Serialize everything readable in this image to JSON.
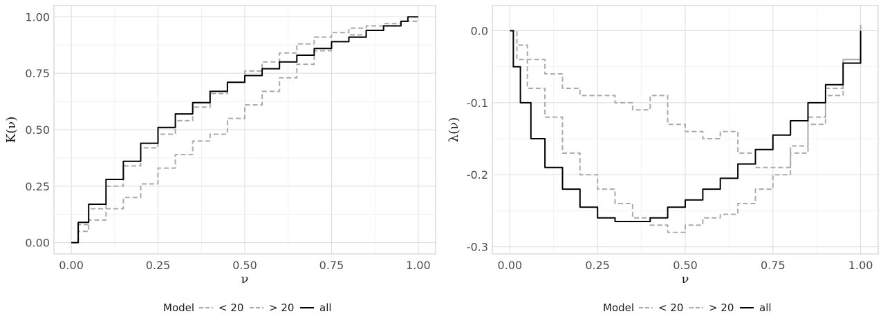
{
  "chart_data": [
    {
      "type": "line",
      "xlabel": "ν",
      "ylabel": "K(ν)",
      "xlim": [
        -0.05,
        1.05
      ],
      "ylim": [
        -0.05,
        1.05
      ],
      "xticks": [
        0.0,
        0.25,
        0.5,
        0.75,
        1.0
      ],
      "xtick_labels": [
        "0.00",
        "0.25",
        "0.50",
        "0.75",
        "1.00"
      ],
      "yticks": [
        0.0,
        0.25,
        0.5,
        0.75,
        1.0
      ],
      "ytick_labels": [
        "0.00",
        "0.25",
        "0.50",
        "0.75",
        "1.00"
      ],
      "grid": true,
      "series": [
        {
          "name": "< 20",
          "color": "#aaaaaa",
          "dash": "dashed",
          "x": [
            0.0,
            0.02,
            0.05,
            0.1,
            0.15,
            0.2,
            0.25,
            0.3,
            0.35,
            0.4,
            0.45,
            0.5,
            0.55,
            0.6,
            0.65,
            0.7,
            0.75,
            0.8,
            0.85,
            0.9,
            0.95,
            1.0
          ],
          "y": [
            0.0,
            0.08,
            0.15,
            0.25,
            0.34,
            0.42,
            0.48,
            0.54,
            0.6,
            0.66,
            0.71,
            0.76,
            0.8,
            0.84,
            0.88,
            0.91,
            0.93,
            0.95,
            0.96,
            0.97,
            0.98,
            0.98
          ]
        },
        {
          "name": "> 20",
          "color": "#aaaaaa",
          "dash": "dashed",
          "x": [
            0.0,
            0.02,
            0.05,
            0.1,
            0.15,
            0.2,
            0.25,
            0.3,
            0.35,
            0.4,
            0.45,
            0.5,
            0.55,
            0.6,
            0.65,
            0.7,
            0.75,
            0.8,
            0.85,
            0.9,
            0.95,
            1.0
          ],
          "y": [
            0.0,
            0.05,
            0.1,
            0.15,
            0.2,
            0.26,
            0.33,
            0.39,
            0.45,
            0.48,
            0.55,
            0.61,
            0.67,
            0.73,
            0.79,
            0.85,
            0.89,
            0.92,
            0.94,
            0.96,
            0.98,
            0.99
          ]
        },
        {
          "name": "all",
          "color": "#000000",
          "dash": "solid",
          "x": [
            0.0,
            0.02,
            0.05,
            0.1,
            0.15,
            0.2,
            0.25,
            0.3,
            0.35,
            0.4,
            0.45,
            0.5,
            0.55,
            0.6,
            0.65,
            0.7,
            0.75,
            0.8,
            0.85,
            0.9,
            0.95,
            0.97,
            1.0
          ],
          "y": [
            0.0,
            0.09,
            0.17,
            0.28,
            0.36,
            0.44,
            0.51,
            0.57,
            0.62,
            0.67,
            0.71,
            0.74,
            0.77,
            0.8,
            0.83,
            0.86,
            0.89,
            0.91,
            0.94,
            0.96,
            0.98,
            1.0,
            1.0
          ]
        }
      ]
    },
    {
      "type": "line",
      "xlabel": "ν",
      "ylabel": "λ(ν)",
      "xlim": [
        -0.05,
        1.05
      ],
      "ylim": [
        -0.31,
        0.035
      ],
      "xticks": [
        0.0,
        0.25,
        0.5,
        0.75,
        1.0
      ],
      "xtick_labels": [
        "0.00",
        "0.25",
        "0.50",
        "0.75",
        "1.00"
      ],
      "yticks": [
        0.0,
        -0.1,
        -0.2,
        -0.3
      ],
      "ytick_labels": [
        "0.0",
        "-0.1",
        "-0.2",
        "-0.3"
      ],
      "grid": true,
      "series": [
        {
          "name": "< 20",
          "color": "#aaaaaa",
          "dash": "dashed",
          "x": [
            0.0,
            0.02,
            0.05,
            0.1,
            0.15,
            0.2,
            0.25,
            0.3,
            0.35,
            0.4,
            0.45,
            0.5,
            0.55,
            0.6,
            0.65,
            0.7,
            0.75,
            0.8,
            0.85,
            0.9,
            0.95,
            1.0
          ],
          "y": [
            0.0,
            -0.02,
            -0.04,
            -0.06,
            -0.08,
            -0.09,
            -0.09,
            -0.1,
            -0.11,
            -0.09,
            -0.13,
            -0.14,
            -0.15,
            -0.14,
            -0.17,
            -0.19,
            -0.19,
            -0.17,
            -0.13,
            -0.09,
            -0.04,
            0.01
          ]
        },
        {
          "name": "> 20",
          "color": "#aaaaaa",
          "dash": "dashed",
          "x": [
            0.0,
            0.02,
            0.05,
            0.1,
            0.15,
            0.2,
            0.25,
            0.3,
            0.35,
            0.4,
            0.45,
            0.5,
            0.55,
            0.6,
            0.65,
            0.7,
            0.75,
            0.8,
            0.85,
            0.9,
            0.95,
            1.0
          ],
          "y": [
            0.0,
            -0.04,
            -0.08,
            -0.12,
            -0.17,
            -0.2,
            -0.22,
            -0.24,
            -0.26,
            -0.27,
            -0.28,
            -0.27,
            -0.26,
            -0.255,
            -0.24,
            -0.22,
            -0.2,
            -0.16,
            -0.12,
            -0.08,
            -0.04,
            0.0
          ]
        },
        {
          "name": "all",
          "color": "#000000",
          "dash": "solid",
          "x": [
            0.0,
            0.01,
            0.03,
            0.06,
            0.1,
            0.15,
            0.2,
            0.25,
            0.3,
            0.35,
            0.4,
            0.45,
            0.5,
            0.55,
            0.6,
            0.65,
            0.7,
            0.75,
            0.8,
            0.85,
            0.9,
            0.95,
            1.0
          ],
          "y": [
            0.0,
            -0.05,
            -0.1,
            -0.15,
            -0.19,
            -0.22,
            -0.245,
            -0.26,
            -0.265,
            -0.265,
            -0.26,
            -0.245,
            -0.235,
            -0.22,
            -0.205,
            -0.185,
            -0.165,
            -0.145,
            -0.125,
            -0.1,
            -0.075,
            -0.045,
            0.0
          ]
        }
      ]
    }
  ],
  "legends": [
    {
      "title": "Model",
      "items": [
        "< 20",
        "> 20",
        "all"
      ]
    },
    {
      "title": "Model",
      "items": [
        "< 20",
        "> 20",
        "all"
      ]
    }
  ]
}
